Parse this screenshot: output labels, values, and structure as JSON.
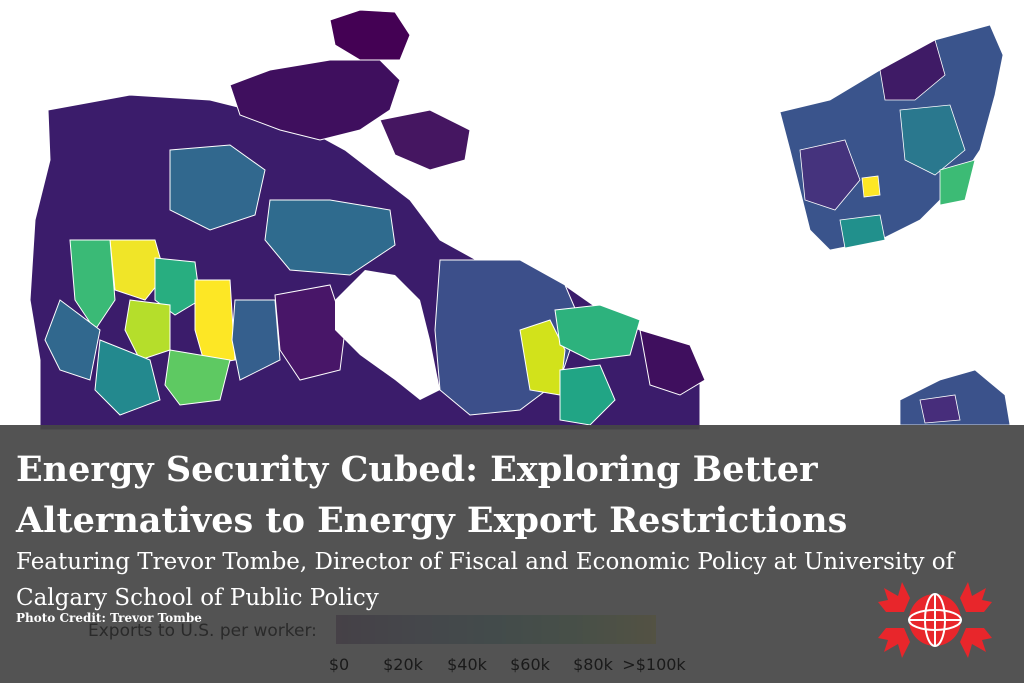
{
  "title": "Energy Security Cubed: Exploring Better Alternatives to Energy Export Restrictions",
  "subtitle": "Featuring Trevor Tombe, Director of Fiscal and Economic Policy at University of Calgary School of Public Policy",
  "photo_credit": "Photo Credit: Trevor Tombe",
  "legend": {
    "title": "Exports to U.S. per worker:",
    "ticks": [
      "$0",
      "$20k",
      "$40k",
      "$60k",
      "$80k",
      ">$100k"
    ],
    "colors": [
      "#440154",
      "#3b528b",
      "#21908c",
      "#5dc863",
      "#fde725"
    ]
  },
  "colors": {
    "overlay": "#464646",
    "logo": "#e8262b"
  },
  "icons": {
    "logo": "maple-leaf-globe-logo"
  }
}
